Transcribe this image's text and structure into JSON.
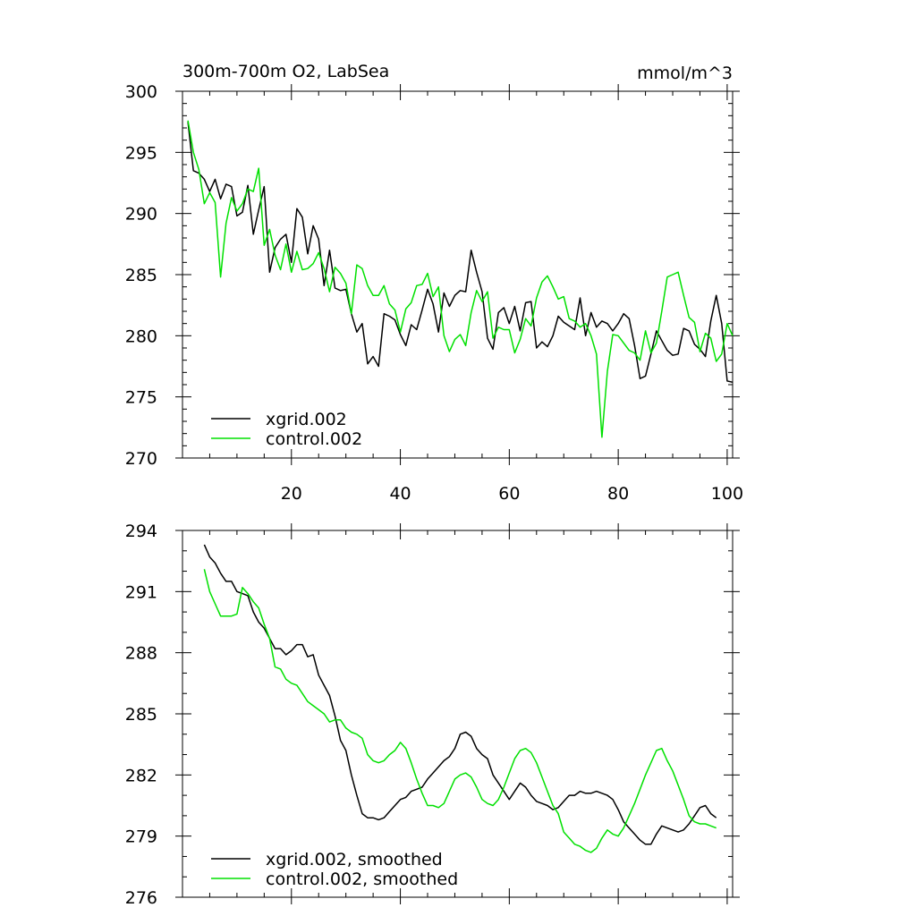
{
  "chart_data": [
    {
      "type": "line",
      "title": "300m-700m O2, LabSea",
      "units": "mmol/m^3",
      "xlim": [
        0,
        101
      ],
      "ylim": [
        270,
        300
      ],
      "xticks": [
        "20",
        "40",
        "60",
        "80",
        "100"
      ],
      "xtick_values": [
        20,
        40,
        60,
        80,
        100
      ],
      "yticks": [
        "270",
        "275",
        "280",
        "285",
        "290",
        "295",
        "300"
      ],
      "ytick_values": [
        270,
        275,
        280,
        285,
        290,
        295,
        300
      ],
      "legend": "bottom-left",
      "series": [
        {
          "name": "xgrid.002",
          "color": "#000000",
          "x": [
            1,
            2,
            3,
            4,
            5,
            6,
            7,
            8,
            9,
            10,
            11,
            12,
            13,
            14,
            15,
            16,
            17,
            18,
            19,
            20,
            21,
            22,
            23,
            24,
            25,
            26,
            27,
            28,
            29,
            30,
            31,
            32,
            33,
            34,
            35,
            36,
            37,
            38,
            39,
            40,
            41,
            42,
            43,
            44,
            45,
            46,
            47,
            48,
            49,
            50,
            51,
            52,
            53,
            54,
            55,
            56,
            57,
            58,
            59,
            60,
            61,
            62,
            63,
            64,
            65,
            66,
            67,
            68,
            69,
            70,
            71,
            72,
            73,
            74,
            75,
            76,
            77,
            78,
            79,
            80,
            81,
            82,
            83,
            84,
            85,
            86,
            87,
            88,
            89,
            90,
            91,
            92,
            93,
            94,
            95,
            96,
            97,
            98,
            99,
            100,
            101
          ],
          "values": [
            297.5,
            293.5,
            293.3,
            292.8,
            291.8,
            292.8,
            291.2,
            292.4,
            292.2,
            289.8,
            290.1,
            292.3,
            288.3,
            290.3,
            292.2,
            285.2,
            287.2,
            287.9,
            288.3,
            286.0,
            290.4,
            289.7,
            286.7,
            289.0,
            287.9,
            284.1,
            287.0,
            283.9,
            283.7,
            283.8,
            281.8,
            280.3,
            281.0,
            277.7,
            278.3,
            277.5,
            281.8,
            281.6,
            281.3,
            280.1,
            279.2,
            280.9,
            280.5,
            282.1,
            283.8,
            282.6,
            280.3,
            283.5,
            282.4,
            283.3,
            283.7,
            283.6,
            287.0,
            285.2,
            283.6,
            279.8,
            278.9,
            281.9,
            282.3,
            281.0,
            282.4,
            280.4,
            282.7,
            282.8,
            279.0,
            279.5,
            279.1,
            280.0,
            281.6,
            281.1,
            280.8,
            280.5,
            283.1,
            280.0,
            281.9,
            280.7,
            281.2,
            281.0,
            280.4,
            281.0,
            281.8,
            281.4,
            279.2,
            276.5,
            276.7,
            278.5,
            280.4,
            279.6,
            278.8,
            278.4,
            278.5,
            280.6,
            280.4,
            279.3,
            278.9,
            278.3,
            281.2,
            283.3,
            281.0,
            276.3,
            276.2
          ]
        },
        {
          "name": "control.002",
          "color": "#00e000",
          "x": [
            1,
            2,
            3,
            4,
            5,
            6,
            7,
            8,
            9,
            10,
            11,
            12,
            13,
            14,
            15,
            16,
            17,
            18,
            19,
            20,
            21,
            22,
            23,
            24,
            25,
            26,
            27,
            28,
            29,
            30,
            31,
            32,
            33,
            34,
            35,
            36,
            37,
            38,
            39,
            40,
            41,
            42,
            43,
            44,
            45,
            46,
            47,
            48,
            49,
            50,
            51,
            52,
            53,
            54,
            55,
            56,
            57,
            58,
            59,
            60,
            61,
            62,
            63,
            64,
            65,
            66,
            67,
            68,
            69,
            70,
            71,
            72,
            73,
            74,
            75,
            76,
            77,
            78,
            79,
            80,
            81,
            82,
            83,
            84,
            85,
            86,
            87,
            88,
            89,
            90,
            91,
            92,
            93,
            94,
            95,
            96,
            97,
            98,
            99,
            100,
            101
          ],
          "values": [
            297.6,
            295.0,
            293.6,
            290.8,
            291.7,
            290.9,
            284.8,
            289.2,
            291.3,
            290.2,
            290.8,
            292.0,
            291.8,
            293.7,
            287.4,
            288.7,
            286.6,
            285.4,
            287.5,
            285.2,
            286.9,
            285.4,
            285.5,
            285.9,
            286.8,
            285.5,
            283.6,
            285.6,
            285.1,
            284.3,
            281.8,
            285.8,
            285.5,
            284.1,
            283.3,
            283.3,
            284.1,
            282.6,
            282.1,
            280.3,
            282.2,
            282.7,
            284.1,
            284.2,
            285.1,
            283.2,
            284.0,
            280.0,
            278.7,
            279.7,
            280.1,
            279.2,
            281.9,
            283.7,
            282.8,
            283.6,
            279.8,
            280.7,
            280.5,
            280.5,
            278.6,
            279.7,
            281.4,
            280.8,
            283.1,
            284.4,
            284.9,
            284.0,
            283.0,
            283.2,
            281.4,
            281.2,
            280.7,
            281.0,
            280.0,
            278.5,
            271.7,
            277.1,
            280.1,
            280.0,
            279.4,
            278.8,
            278.6,
            278.0,
            280.4,
            278.6,
            279.4,
            282.0,
            284.8,
            285.0,
            285.2,
            283.3,
            281.5,
            281.1,
            278.7,
            280.2,
            279.8,
            277.9,
            278.5,
            281.0,
            280.0
          ]
        }
      ]
    },
    {
      "type": "line",
      "xlim": [
        0,
        101
      ],
      "ylim": [
        276,
        294
      ],
      "xtick_values": [
        20,
        40,
        60,
        80,
        100
      ],
      "yticks": [
        "276",
        "279",
        "282",
        "285",
        "288",
        "291",
        "294"
      ],
      "ytick_values": [
        276,
        279,
        282,
        285,
        288,
        291,
        294
      ],
      "legend": "bottom-left",
      "series": [
        {
          "name": "xgrid.002, smoothed",
          "color": "#000000",
          "x": [
            4,
            5,
            6,
            7,
            8,
            9,
            10,
            11,
            12,
            13,
            14,
            15,
            16,
            17,
            18,
            19,
            20,
            21,
            22,
            23,
            24,
            25,
            26,
            27,
            28,
            29,
            30,
            31,
            32,
            33,
            34,
            35,
            36,
            37,
            38,
            39,
            40,
            41,
            42,
            43,
            44,
            45,
            46,
            47,
            48,
            49,
            50,
            51,
            52,
            53,
            54,
            55,
            56,
            57,
            58,
            59,
            60,
            61,
            62,
            63,
            64,
            65,
            66,
            67,
            68,
            69,
            70,
            71,
            72,
            73,
            74,
            75,
            76,
            77,
            78,
            79,
            80,
            81,
            82,
            83,
            84,
            85,
            86,
            87,
            88,
            89,
            90,
            91,
            92,
            93,
            94,
            95,
            96,
            97,
            98
          ],
          "values": [
            293.3,
            292.7,
            292.4,
            291.9,
            291.5,
            291.5,
            291.0,
            290.9,
            290.8,
            290.0,
            289.5,
            289.2,
            288.7,
            288.2,
            288.2,
            287.9,
            288.1,
            288.4,
            288.4,
            287.8,
            287.9,
            286.9,
            286.4,
            285.9,
            284.9,
            283.7,
            283.2,
            282.0,
            281.0,
            280.1,
            279.9,
            279.9,
            279.8,
            279.9,
            280.2,
            280.5,
            280.8,
            280.9,
            281.2,
            281.3,
            281.4,
            281.8,
            282.1,
            282.4,
            282.7,
            282.9,
            283.3,
            284.0,
            284.1,
            283.9,
            283.3,
            283.0,
            282.8,
            282.0,
            281.6,
            281.2,
            280.8,
            281.2,
            281.6,
            281.4,
            281.0,
            280.7,
            280.6,
            280.5,
            280.3,
            280.4,
            280.7,
            281.0,
            281.0,
            281.2,
            281.1,
            281.1,
            281.2,
            281.1,
            281.0,
            280.8,
            280.3,
            279.7,
            279.4,
            279.1,
            278.8,
            278.6,
            278.6,
            279.1,
            279.5,
            279.4,
            279.3,
            279.2,
            279.3,
            279.6,
            280.0,
            280.4,
            280.5,
            280.1,
            279.9
          ]
        },
        {
          "name": "control.002, smoothed",
          "color": "#00e000",
          "x": [
            4,
            5,
            6,
            7,
            8,
            9,
            10,
            11,
            12,
            13,
            14,
            15,
            16,
            17,
            18,
            19,
            20,
            21,
            22,
            23,
            24,
            25,
            26,
            27,
            28,
            29,
            30,
            31,
            32,
            33,
            34,
            35,
            36,
            37,
            38,
            39,
            40,
            41,
            42,
            43,
            44,
            45,
            46,
            47,
            48,
            49,
            50,
            51,
            52,
            53,
            54,
            55,
            56,
            57,
            58,
            59,
            60,
            61,
            62,
            63,
            64,
            65,
            66,
            67,
            68,
            69,
            70,
            71,
            72,
            73,
            74,
            75,
            76,
            77,
            78,
            79,
            80,
            81,
            82,
            83,
            84,
            85,
            86,
            87,
            88,
            89,
            90,
            91,
            92,
            93,
            94,
            95,
            96,
            97,
            98
          ],
          "values": [
            292.1,
            291.0,
            290.4,
            289.8,
            289.8,
            289.8,
            289.9,
            291.2,
            290.9,
            290.5,
            290.2,
            289.4,
            288.7,
            287.3,
            287.2,
            286.7,
            286.5,
            286.4,
            286.0,
            285.6,
            285.4,
            285.2,
            285.0,
            284.6,
            284.7,
            284.7,
            284.3,
            284.1,
            284.0,
            283.8,
            283.0,
            282.7,
            282.6,
            282.7,
            283.0,
            283.2,
            283.6,
            283.3,
            282.6,
            281.8,
            281.1,
            280.5,
            280.5,
            280.4,
            280.6,
            281.2,
            281.8,
            282.0,
            282.1,
            281.9,
            281.4,
            280.8,
            280.6,
            280.5,
            280.8,
            281.4,
            282.1,
            282.8,
            283.2,
            283.3,
            283.1,
            282.6,
            281.9,
            281.2,
            280.5,
            280.1,
            279.2,
            278.9,
            278.6,
            278.5,
            278.3,
            278.2,
            278.4,
            278.9,
            279.3,
            279.1,
            279.0,
            279.4,
            280.0,
            280.6,
            281.3,
            282.0,
            282.6,
            283.2,
            283.3,
            282.7,
            282.2,
            281.5,
            280.8,
            280.0,
            279.7,
            279.6,
            279.6,
            279.5,
            279.4
          ]
        }
      ]
    }
  ]
}
